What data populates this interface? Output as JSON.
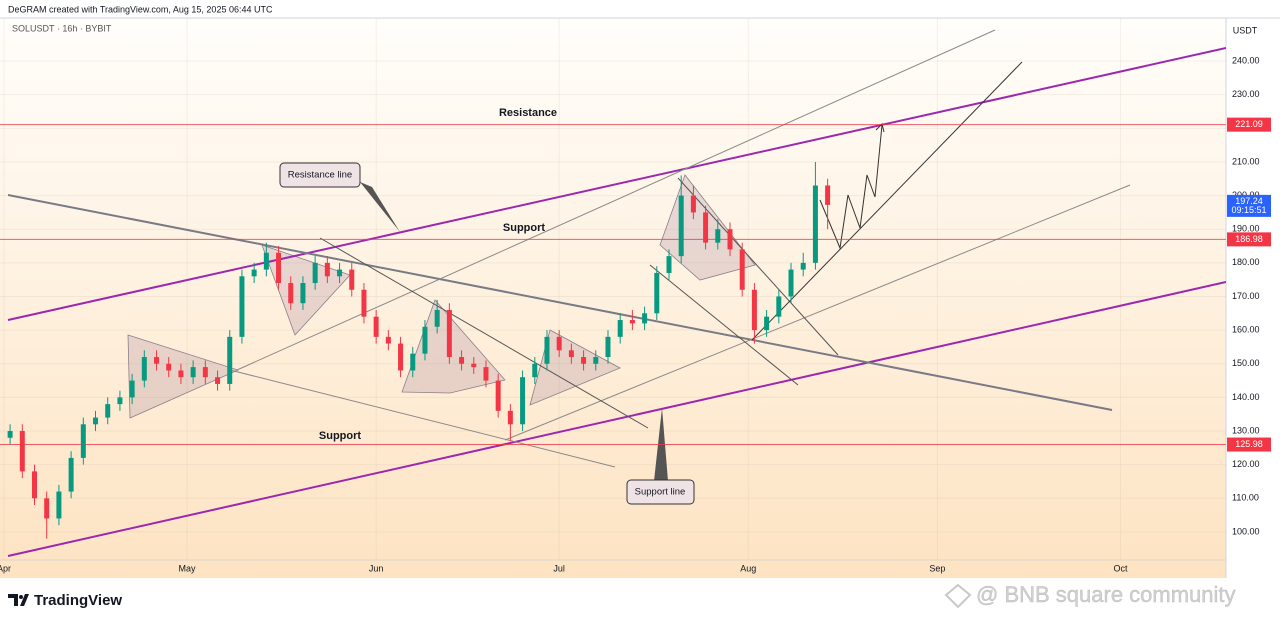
{
  "header": "DeGRAM created with TradingView.com, Aug 15, 2025 06:44 UTC",
  "brand": "TradingView",
  "watermark": "@ BNB square community",
  "chart_data": {
    "type": "candlestick",
    "title": "SOLUSDT · 16h · BYBIT",
    "currency": "USDT",
    "up_color": "#089981",
    "down_color": "#f23645",
    "grid": true,
    "x": [
      1,
      3,
      5,
      7,
      9,
      11,
      13,
      15,
      17,
      19,
      21,
      23,
      25,
      27,
      29,
      31,
      33,
      35,
      37,
      39,
      41,
      43,
      45,
      47,
      49,
      51,
      53,
      55,
      57,
      59,
      61,
      63,
      65,
      67,
      69,
      71,
      73,
      75,
      77,
      79,
      81,
      83,
      85,
      87,
      89,
      91,
      93,
      95,
      97,
      99,
      101,
      103,
      105,
      107,
      109,
      111,
      113,
      115,
      117,
      119,
      121,
      123,
      125,
      127,
      129,
      131,
      133,
      135
    ],
    "open": [
      128,
      130,
      118,
      110,
      104,
      112,
      122,
      132,
      134,
      138,
      140,
      145,
      152,
      150,
      148,
      146,
      149,
      146,
      144,
      158,
      176,
      178,
      183,
      174,
      168,
      174,
      180,
      176,
      178,
      172,
      164,
      158,
      156,
      148,
      153,
      161,
      166,
      152,
      150,
      149,
      145,
      136,
      132,
      146,
      150,
      158,
      154,
      152,
      150,
      152,
      158,
      163,
      162,
      165,
      177,
      182,
      200,
      195,
      186,
      190,
      184,
      172,
      160,
      164,
      170,
      178,
      180,
      203
    ],
    "high": [
      132,
      132,
      120,
      112,
      114,
      124,
      134,
      136,
      140,
      142,
      147,
      154,
      154,
      152,
      150,
      151,
      151,
      148,
      160,
      178,
      180,
      186,
      185,
      176,
      176,
      182,
      182,
      180,
      180,
      174,
      166,
      160,
      158,
      155,
      163,
      169,
      168,
      154,
      152,
      151,
      147,
      138,
      148,
      152,
      160,
      160,
      156,
      154,
      154,
      160,
      165,
      166,
      167,
      179,
      184,
      206,
      203,
      197,
      193,
      192,
      186,
      174,
      166,
      172,
      180,
      183,
      210,
      205
    ],
    "low": [
      126,
      116,
      108,
      98,
      102,
      110,
      120,
      130,
      132,
      136,
      138,
      143,
      148,
      146,
      144,
      144,
      144,
      142,
      142,
      156,
      174,
      176,
      172,
      166,
      166,
      172,
      174,
      174,
      170,
      162,
      156,
      154,
      146,
      146,
      151,
      159,
      150,
      148,
      147,
      143,
      134,
      127,
      130,
      144,
      148,
      152,
      150,
      148,
      148,
      150,
      156,
      160,
      160,
      163,
      175,
      180,
      193,
      184,
      184,
      182,
      170,
      156,
      158,
      162,
      168,
      176,
      178,
      190
    ],
    "close": [
      130,
      118,
      110,
      104,
      112,
      122,
      132,
      134,
      138,
      140,
      145,
      152,
      150,
      148,
      146,
      149,
      146,
      144,
      158,
      176,
      178,
      183,
      174,
      168,
      174,
      180,
      176,
      178,
      172,
      164,
      158,
      156,
      148,
      153,
      161,
      166,
      152,
      150,
      149,
      145,
      136,
      132,
      146,
      150,
      158,
      154,
      152,
      150,
      152,
      158,
      163,
      162,
      165,
      177,
      182,
      200,
      195,
      186,
      190,
      184,
      172,
      160,
      164,
      170,
      178,
      180,
      203,
      197.24
    ],
    "xlim": [
      -0.656,
      200.3
    ],
    "xticks": [
      {
        "value": 0,
        "label": "Apr"
      },
      {
        "value": 30,
        "label": "May"
      },
      {
        "value": 61,
        "label": "Jun"
      },
      {
        "value": 91,
        "label": "Jul"
      },
      {
        "value": 122,
        "label": "Aug"
      },
      {
        "value": 153,
        "label": "Sep"
      },
      {
        "value": 183,
        "label": "Oct"
      }
    ],
    "ylim": [
      86.3,
      252.8
    ],
    "yticks": [
      {
        "value": 100,
        "label": "100.00"
      },
      {
        "value": 110,
        "label": "110.00"
      },
      {
        "value": 120,
        "label": "120.00"
      },
      {
        "value": 130,
        "label": "130.00"
      },
      {
        "value": 140,
        "label": "140.00"
      },
      {
        "value": 150,
        "label": "150.00"
      },
      {
        "value": 160,
        "label": "160.00"
      },
      {
        "value": 170,
        "label": "170.00"
      },
      {
        "value": 180,
        "label": "180.00"
      },
      {
        "value": 190,
        "label": "190.00"
      },
      {
        "value": 200,
        "label": "200.00"
      },
      {
        "value": 210,
        "label": "210.00"
      },
      {
        "value": 220,
        "label": "220.00"
      },
      {
        "value": 230,
        "label": "230.00"
      },
      {
        "value": 240,
        "label": "240.00"
      }
    ],
    "levels": [
      221.09,
      186.98,
      125.98
    ],
    "level_color": "#f23645",
    "last_price": 197.24,
    "countdown": "09:15:51",
    "last_color": "#2962ff",
    "annotations": [
      "Resistance",
      "Support",
      "Support",
      "Resistance line",
      "Support line"
    ]
  }
}
